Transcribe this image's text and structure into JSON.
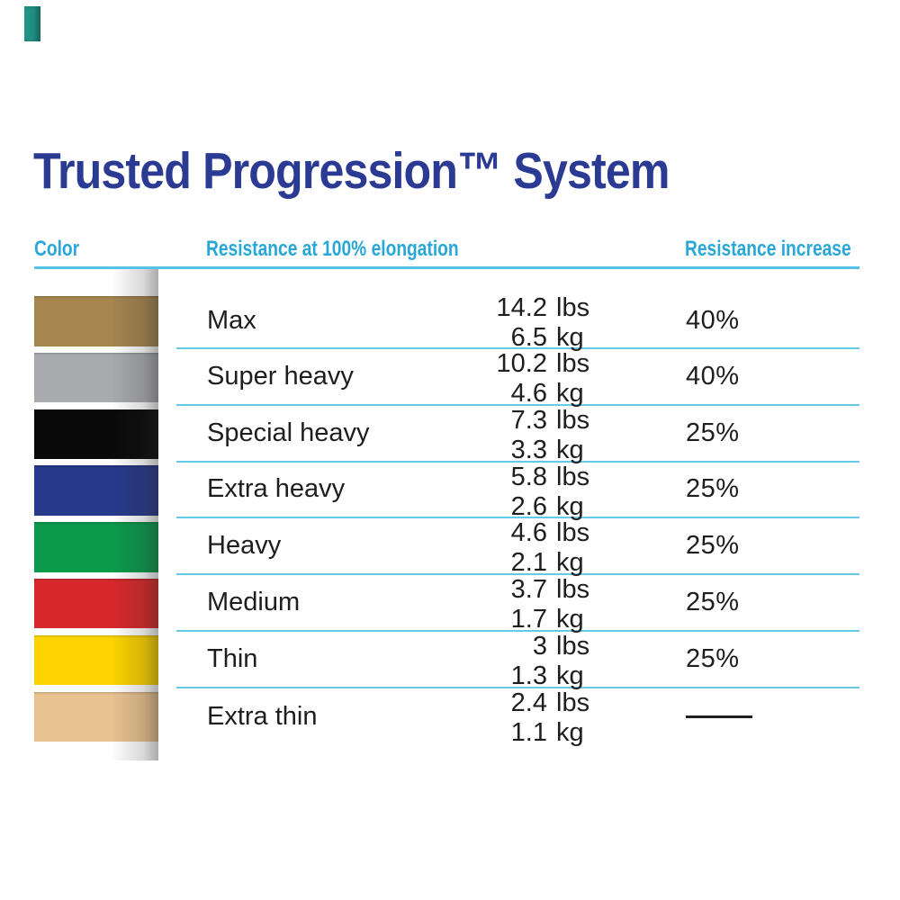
{
  "corner_mark": {
    "color": "#219286"
  },
  "colors": {
    "title_navy": "#2b3a92",
    "accent_cyan": "#29a7d9",
    "line_cyan": "#66c8e8",
    "text": "#1e1e1c"
  },
  "chart_data": {
    "type": "table",
    "title": "Trusted Progression™ System",
    "columns": [
      "Color",
      "Resistance at 100% elongation",
      "Resistance increase"
    ],
    "units": {
      "lbs": "lbs",
      "kg": "kg"
    },
    "rows": [
      {
        "color": "tan",
        "band_color": "#a6854f",
        "label": "Max",
        "lbs": "14.2",
        "kg": "6.5",
        "increase": "40%"
      },
      {
        "color": "silver",
        "band_color": "#a9aaae",
        "label": "Super heavy",
        "lbs": "10.2",
        "kg": "4.6",
        "increase": "40%"
      },
      {
        "color": "black",
        "band_color": "#0a0a0a",
        "label": "Special heavy",
        "lbs": "7.3",
        "kg": "3.3",
        "increase": "25%"
      },
      {
        "color": "blue",
        "band_color": "#27398b",
        "label": "Extra heavy",
        "lbs": "5.8",
        "kg": "2.6",
        "increase": "25%"
      },
      {
        "color": "green",
        "band_color": "#0b9a4c",
        "label": "Heavy",
        "lbs": "4.6",
        "kg": "2.1",
        "increase": "25%"
      },
      {
        "color": "red",
        "band_color": "#d7292b",
        "label": "Medium",
        "lbs": "3.7",
        "kg": "1.7",
        "increase": "25%"
      },
      {
        "color": "yellow",
        "band_color": "#fdd400",
        "label": "Thin",
        "lbs": "3",
        "kg": "1.3",
        "increase": "25%"
      },
      {
        "color": "beige",
        "band_color": "#e9c38f",
        "label": "Extra thin",
        "lbs": "2.4",
        "kg": "1.1",
        "increase": "—"
      }
    ]
  }
}
